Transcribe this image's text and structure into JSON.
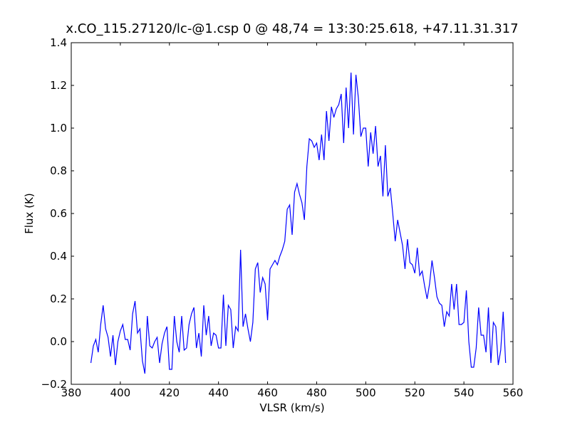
{
  "chart_data": {
    "type": "line",
    "title": "x.CO_115.27120/lc-@1.csp 0 @ 48,74 = 13:30:25.618, +47.11.31.317",
    "x_label": "VLSR (km/s)",
    "y_label": "Flux (K)",
    "color": "#0000ff",
    "xlim": [
      380,
      560
    ],
    "xticks": [
      380,
      400,
      420,
      440,
      460,
      480,
      500,
      520,
      540,
      560
    ],
    "ylim": [
      -0.2,
      1.4
    ],
    "yticks": [
      {
        "value": -0.2,
        "label": "−0.2"
      },
      {
        "value": 0,
        "label": "0.0"
      },
      {
        "value": 0.2,
        "label": "0.2"
      },
      {
        "value": 0.4,
        "label": "0.4"
      },
      {
        "value": 0.6,
        "label": "0.6"
      },
      {
        "value": 0.8,
        "label": "0.8"
      },
      {
        "value": 1,
        "label": "1.0"
      },
      {
        "value": 1.2,
        "label": "1.2"
      },
      {
        "value": 1.4,
        "label": "1.4"
      }
    ],
    "x": [
      388,
      389,
      390,
      391,
      392,
      393,
      394,
      395,
      396,
      397,
      398,
      399,
      400,
      401,
      402,
      403,
      404,
      405,
      406,
      407,
      408,
      409,
      410,
      411,
      412,
      413,
      414,
      415,
      416,
      417,
      418,
      419,
      420,
      421,
      422,
      423,
      424,
      425,
      426,
      427,
      428,
      429,
      430,
      431,
      432,
      433,
      434,
      435,
      436,
      437,
      438,
      439,
      440,
      441,
      442,
      443,
      444,
      445,
      446,
      447,
      448,
      449,
      450,
      451,
      452,
      453,
      454,
      455,
      456,
      457,
      458,
      459,
      460,
      461,
      462,
      463,
      464,
      465,
      466,
      467,
      468,
      469,
      470,
      471,
      472,
      473,
      474,
      475,
      476,
      477,
      478,
      479,
      480,
      481,
      482,
      483,
      484,
      485,
      486,
      487,
      488,
      489,
      490,
      491,
      492,
      493,
      494,
      495,
      496,
      497,
      498,
      499,
      500,
      501,
      502,
      503,
      504,
      505,
      506,
      507,
      508,
      509,
      510,
      511,
      512,
      513,
      514,
      515,
      516,
      517,
      518,
      519,
      520,
      521,
      522,
      523,
      524,
      525,
      526,
      527,
      528,
      529,
      530,
      531,
      532,
      533,
      534,
      535,
      536,
      537,
      538,
      539,
      540,
      541,
      542,
      543,
      544,
      545,
      546,
      547,
      548,
      549,
      550,
      551,
      552,
      553,
      554,
      555,
      556,
      557
    ],
    "values": [
      -0.1,
      -0.02,
      0.01,
      -0.05,
      0.08,
      0.17,
      0.06,
      0.02,
      -0.07,
      0.03,
      -0.11,
      0.0,
      0.05,
      0.08,
      0.01,
      0.01,
      -0.04,
      0.13,
      0.19,
      0.04,
      0.06,
      -0.09,
      -0.15,
      0.12,
      -0.02,
      -0.03,
      0.0,
      0.02,
      -0.1,
      -0.01,
      0.04,
      0.07,
      -0.13,
      -0.13,
      0.12,
      0.0,
      -0.05,
      0.12,
      -0.04,
      -0.03,
      0.08,
      0.13,
      0.16,
      -0.03,
      0.04,
      -0.07,
      0.17,
      0.03,
      0.12,
      -0.02,
      0.04,
      0.03,
      -0.03,
      -0.03,
      0.22,
      -0.02,
      0.17,
      0.15,
      -0.03,
      0.07,
      0.05,
      0.43,
      0.07,
      0.13,
      0.06,
      0.0,
      0.09,
      0.34,
      0.37,
      0.23,
      0.3,
      0.27,
      0.1,
      0.34,
      0.36,
      0.38,
      0.36,
      0.4,
      0.43,
      0.47,
      0.62,
      0.64,
      0.5,
      0.7,
      0.74,
      0.69,
      0.65,
      0.57,
      0.82,
      0.95,
      0.94,
      0.91,
      0.93,
      0.85,
      0.97,
      0.85,
      1.08,
      0.94,
      1.1,
      1.05,
      1.09,
      1.11,
      1.16,
      0.93,
      1.19,
      1.0,
      1.26,
      0.97,
      1.25,
      1.14,
      0.96,
      1.0,
      1.0,
      0.82,
      0.98,
      0.88,
      1.01,
      0.82,
      0.87,
      0.68,
      0.92,
      0.68,
      0.72,
      0.6,
      0.47,
      0.57,
      0.51,
      0.45,
      0.34,
      0.48,
      0.37,
      0.36,
      0.32,
      0.44,
      0.31,
      0.33,
      0.26,
      0.2,
      0.27,
      0.38,
      0.3,
      0.21,
      0.18,
      0.17,
      0.07,
      0.14,
      0.12,
      0.27,
      0.15,
      0.27,
      0.08,
      0.08,
      0.09,
      0.24,
      0.0,
      -0.12,
      -0.12,
      -0.03,
      0.16,
      0.03,
      0.03,
      -0.05,
      0.16,
      -0.1,
      0.09,
      0.07,
      -0.11,
      -0.04,
      0.14,
      -0.1
    ]
  }
}
